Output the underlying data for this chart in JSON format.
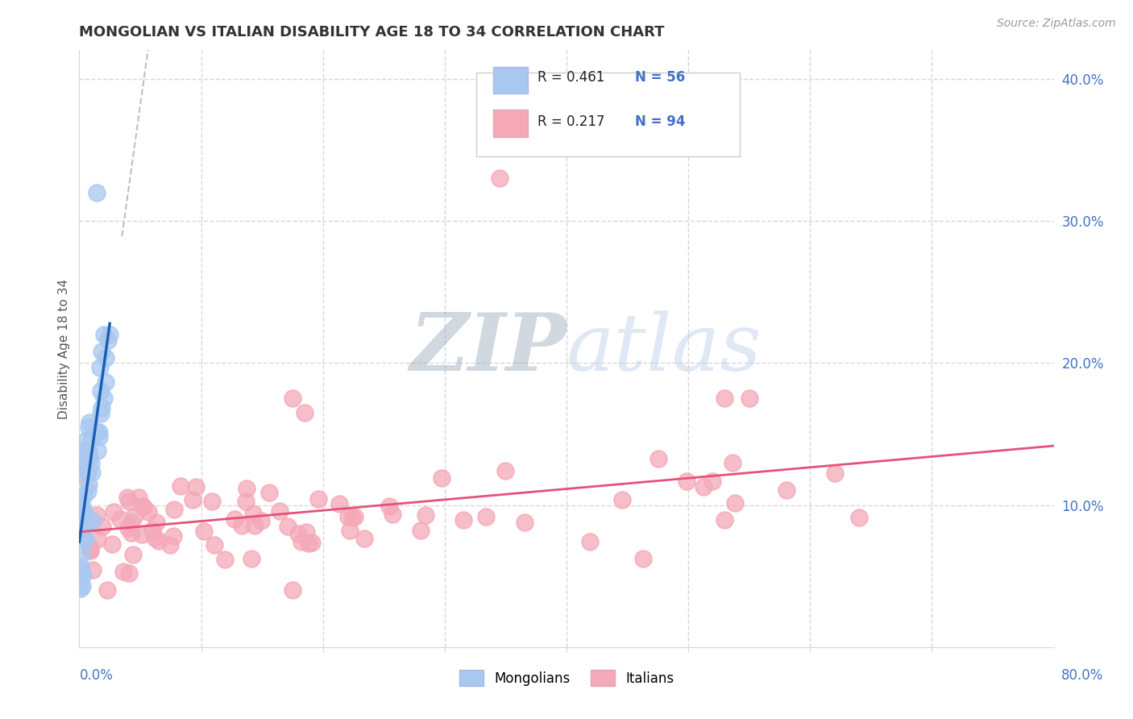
{
  "title": "MONGOLIAN VS ITALIAN DISABILITY AGE 18 TO 34 CORRELATION CHART",
  "source": "Source: ZipAtlas.com",
  "ylabel": "Disability Age 18 to 34",
  "xlim": [
    0,
    0.8
  ],
  "ylim": [
    0,
    0.42
  ],
  "mongolian_color": "#a8c8f0",
  "mongolian_edge": "#7aaad8",
  "italian_color": "#f4a8b8",
  "italian_edge": "#e080a0",
  "mongolian_line_color": "#1a5fb4",
  "italian_line_color": "#e8507a",
  "dash_line_color": "#c0c0c0",
  "watermark_zip": "#b0b8c8",
  "watermark_atlas": "#c8d8f0",
  "grid_color": "#d8d8d8",
  "tick_label_color": "#4472c4",
  "legend_border_color": "#cccccc",
  "title_color": "#333333",
  "source_color": "#999999"
}
